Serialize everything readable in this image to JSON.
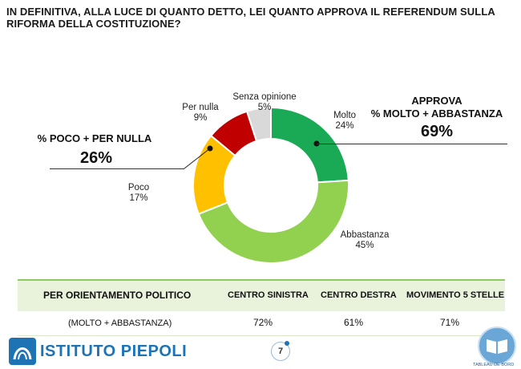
{
  "title": "IN DEFINITIVA, ALLA LUCE DI QUANTO DETTO, LEI QUANTO APPROVA IL REFERENDUM SULLA RIFORMA DELLA COSTITUZIONE?",
  "chart_data": {
    "type": "pie",
    "donut": true,
    "slices": [
      {
        "label": "Molto",
        "value": 24,
        "display": "24%",
        "color": "#1aaa55"
      },
      {
        "label": "Abbastanza",
        "value": 45,
        "display": "45%",
        "color": "#92d050"
      },
      {
        "label": "Poco",
        "value": 17,
        "display": "17%",
        "color": "#ffc000"
      },
      {
        "label": "Per nulla",
        "value": 9,
        "display": "9%",
        "color": "#c00000"
      },
      {
        "label": "Senza opinione",
        "value": 5,
        "display": "5%",
        "color": "#d9d9d9"
      }
    ],
    "summary_right": {
      "line1": "APPROVA",
      "line2": "% MOLTO + ABBASTANZA",
      "value": "69%"
    },
    "summary_left": {
      "line1": "% POCO + PER NULLA",
      "value": "26%"
    }
  },
  "table": {
    "header": [
      "PER ORIENTAMENTO POLITICO",
      "CENTRO SINISTRA",
      "CENTRO DESTRA",
      "MOVIMENTO 5 STELLE"
    ],
    "row": [
      "(MOLTO + ABBASTANZA)",
      "72%",
      "61%",
      "71%"
    ]
  },
  "footer": {
    "brand": "ISTITUTO PIEPOLI",
    "page": "7",
    "badge": "TABLEAU DE BORD"
  },
  "colors": {
    "accent": "#1e73b5",
    "table_header_bg": "#e9f3dc"
  }
}
